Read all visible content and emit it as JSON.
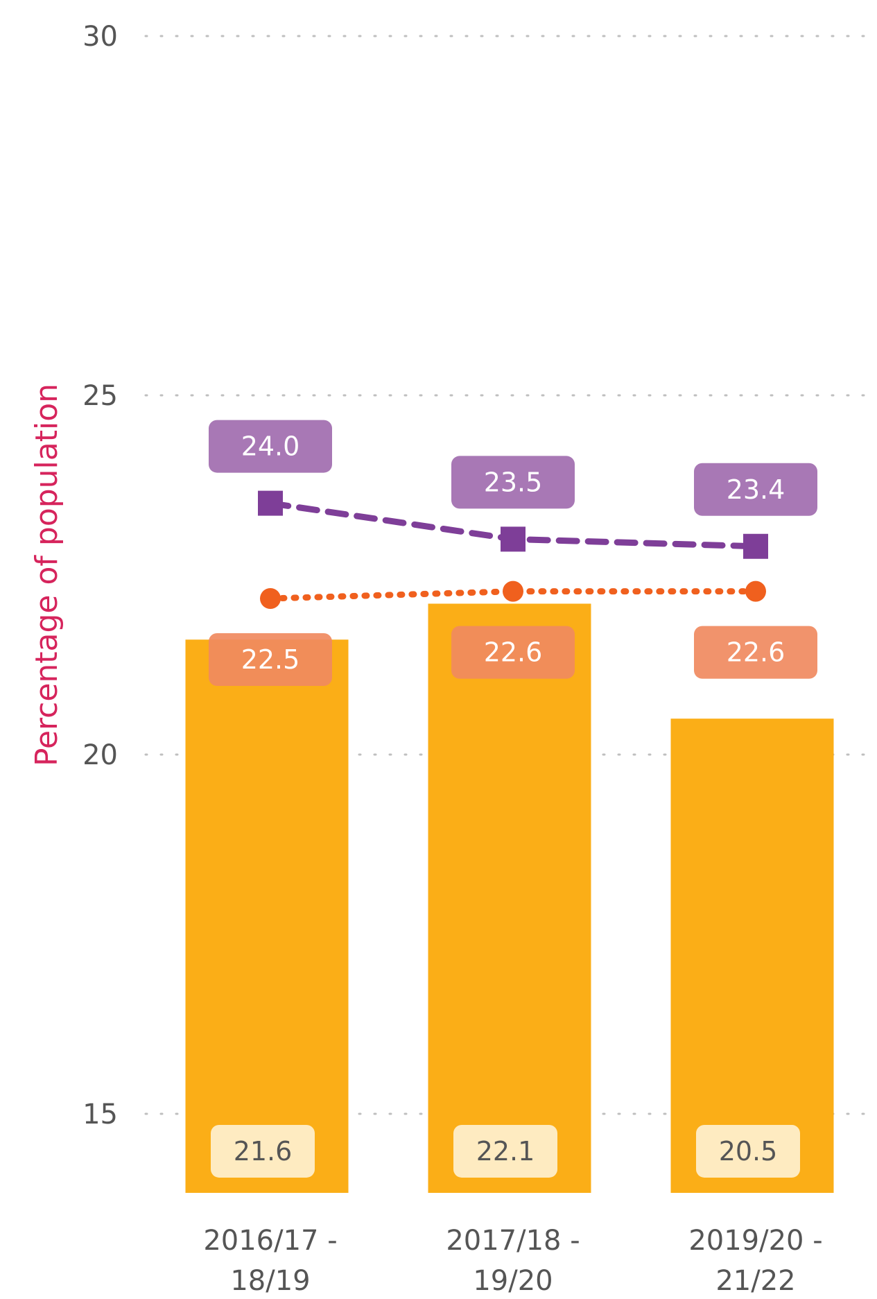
{
  "chart_data": {
    "type": "bar",
    "categories": [
      [
        "2016/17 -",
        "18/19"
      ],
      [
        "2017/18 -",
        "19/20"
      ],
      [
        "2019/20 -",
        "21/22"
      ]
    ],
    "ylabel": "Percentage of population",
    "ylim": [
      13.9,
      30
    ],
    "yticks": [
      15,
      20,
      25,
      30
    ],
    "grid": true,
    "series": [
      {
        "kind": "bar",
        "values": [
          21.6,
          22.1,
          20.5
        ],
        "color": "#FBAE17",
        "label_bg": "#FEEBC1",
        "label_color": "#555555"
      },
      {
        "kind": "line",
        "marker": "circle",
        "dash": "dotted",
        "values": [
          22.5,
          22.6,
          22.6
        ],
        "color": "#F0601E",
        "label_bg": "#F08A5F",
        "label_color": "#ffffff"
      },
      {
        "kind": "line",
        "marker": "square",
        "dash": "dashed",
        "values": [
          24.0,
          23.5,
          23.4
        ],
        "color": "#7E3E98",
        "label_bg": "#A878B5",
        "label_color": "#ffffff"
      }
    ],
    "colors": {
      "ytitle": "#D6245C",
      "grid": "#BFBFBF",
      "axis_text": "#555555"
    }
  }
}
